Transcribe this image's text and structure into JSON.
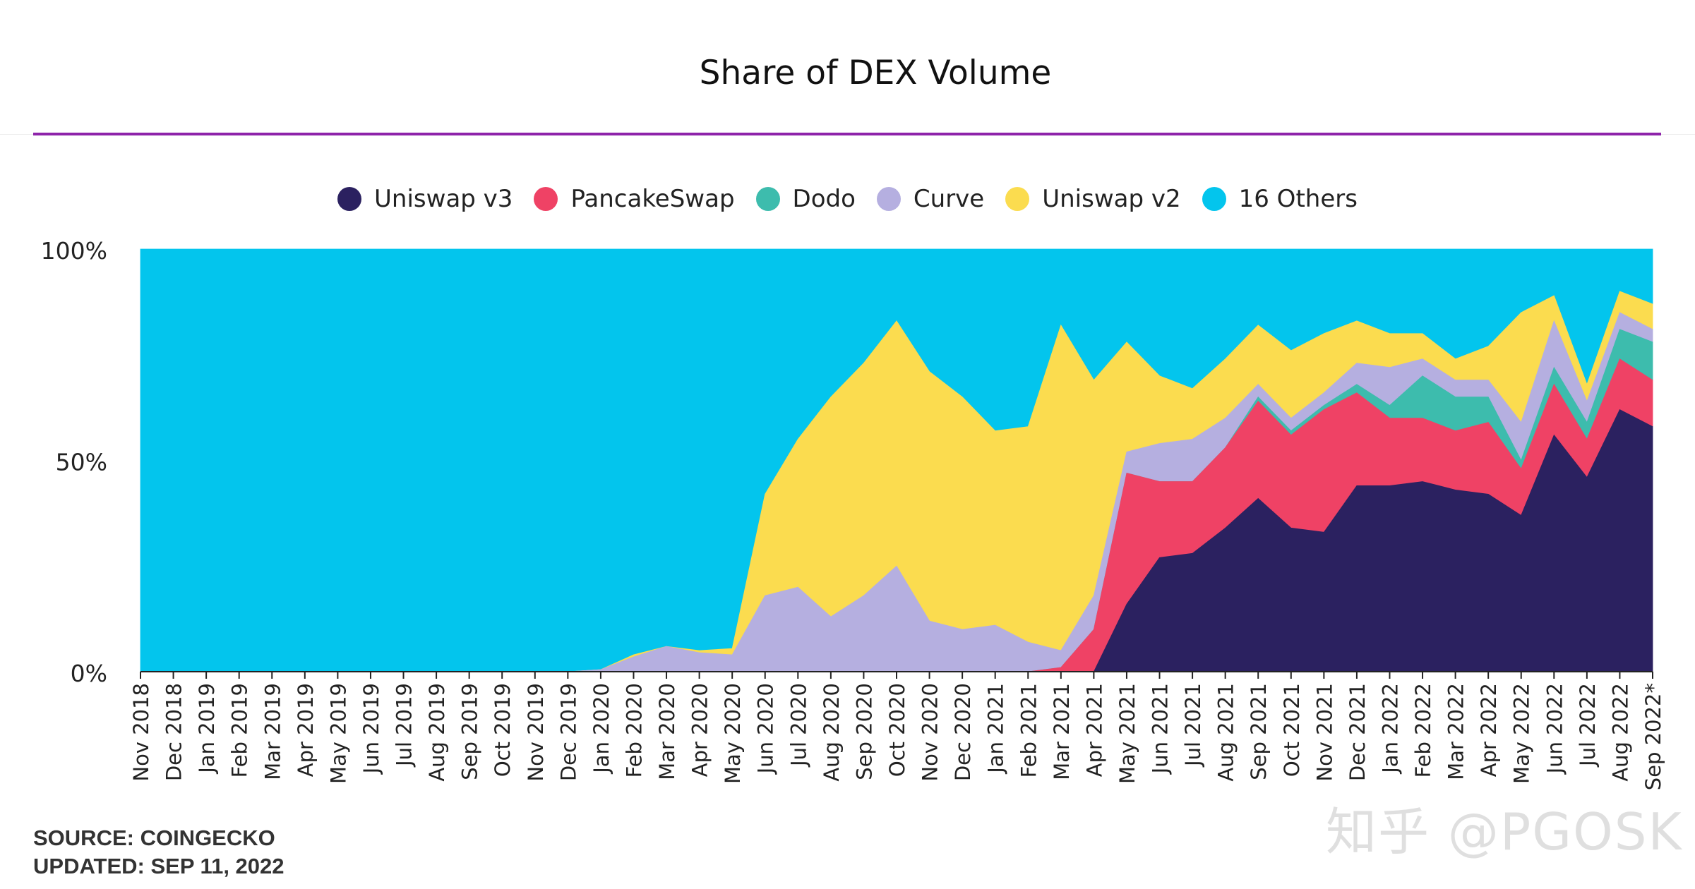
{
  "chart_data": {
    "type": "area",
    "stacked": true,
    "normalized": true,
    "title": "Share of DEX Volume",
    "y_ticks": [
      "0%",
      "50%",
      "100%"
    ],
    "ylim": [
      0,
      100
    ],
    "grid": false,
    "legend_position": "top-center",
    "categories": [
      "Nov 2018",
      "Dec 2018",
      "Jan 2019",
      "Feb 2019",
      "Mar 2019",
      "Apr 2019",
      "May 2019",
      "Jun 2019",
      "Jul 2019",
      "Aug 2019",
      "Sep 2019",
      "Oct 2019",
      "Nov 2019",
      "Dec 2019",
      "Jan 2020",
      "Feb 2020",
      "Mar 2020",
      "Apr 2020",
      "May 2020",
      "Jun 2020",
      "Jul 2020",
      "Aug 2020",
      "Sep 2020",
      "Oct 2020",
      "Nov 2020",
      "Dec 2020",
      "Jan 2021",
      "Feb 2021",
      "Mar 2021",
      "Apr 2021",
      "May 2021",
      "Jun 2021",
      "Jul 2021",
      "Aug 2021",
      "Sep 2021",
      "Oct 2021",
      "Nov 2021",
      "Dec 2021",
      "Jan 2022",
      "Feb 2022",
      "Mar 2022",
      "Apr 2022",
      "May 2022",
      "Jun 2022",
      "Jul 2022",
      "Aug 2022",
      "Sep 2022*"
    ],
    "series": [
      {
        "name": "Uniswap v3",
        "color": "#2b2160",
        "values": [
          0,
          0,
          0,
          0,
          0,
          0,
          0,
          0,
          0,
          0,
          0,
          0,
          0,
          0,
          0,
          0,
          0,
          0,
          0,
          0,
          0,
          0,
          0,
          0,
          0,
          0,
          0,
          0,
          0,
          0,
          16,
          27,
          28,
          34,
          41,
          34,
          33,
          44,
          44,
          45,
          43,
          42,
          37,
          56,
          46,
          62,
          58
        ]
      },
      {
        "name": "PancakeSwap",
        "color": "#ef4265",
        "values": [
          0,
          0,
          0,
          0,
          0,
          0,
          0,
          0,
          0,
          0,
          0,
          0,
          0,
          0,
          0,
          0,
          0,
          0,
          0,
          0,
          0,
          0,
          0,
          0,
          0,
          0,
          0,
          0,
          1,
          10,
          31,
          18,
          17,
          19,
          23,
          22,
          29,
          22,
          16,
          15,
          14,
          17,
          11,
          12,
          9,
          12,
          11
        ]
      },
      {
        "name": "Dodo",
        "color": "#3dbcad",
        "values": [
          0,
          0,
          0,
          0,
          0,
          0,
          0,
          0,
          0,
          0,
          0,
          0,
          0,
          0,
          0,
          0,
          0,
          0,
          0,
          0,
          0,
          0,
          0,
          0,
          0,
          0,
          0,
          0,
          0,
          0,
          0,
          0,
          0,
          0,
          1,
          1,
          1,
          2,
          3,
          10,
          8,
          6,
          2,
          4,
          4,
          7,
          9
        ]
      },
      {
        "name": "Curve",
        "color": "#b5afe0",
        "values": [
          0,
          0,
          0,
          0,
          0,
          0,
          0,
          0,
          0,
          0,
          0,
          0,
          0,
          0,
          0.5,
          3.5,
          6,
          4.5,
          4,
          18,
          20,
          13,
          18,
          25,
          12,
          10,
          11,
          7,
          4,
          8,
          5,
          9,
          10,
          7,
          3,
          3,
          3,
          5,
          9,
          4,
          4,
          4,
          9,
          11,
          5,
          4,
          3
        ]
      },
      {
        "name": "Uniswap v2",
        "color": "#fbdc4f",
        "values": [
          0,
          0,
          0,
          0,
          0,
          0,
          0,
          0,
          0,
          0,
          0,
          0,
          0,
          0,
          0,
          0.5,
          0,
          0.5,
          1.5,
          24,
          35,
          52,
          55,
          58,
          59,
          55,
          46,
          51,
          77,
          51,
          26,
          16,
          12,
          14,
          14,
          16,
          14,
          10,
          8,
          6,
          5,
          8,
          26,
          6,
          4,
          5,
          6
        ]
      },
      {
        "name": "16 Others",
        "color": "#03c5ed",
        "values": [
          100,
          100,
          100,
          100,
          100,
          100,
          100,
          100,
          100,
          100,
          100,
          100,
          100,
          100,
          99.5,
          96,
          94,
          95,
          94.5,
          58,
          45,
          35,
          27,
          17,
          29,
          35,
          43,
          42,
          18,
          31,
          22,
          30,
          33,
          26,
          18,
          24,
          20,
          17,
          20,
          20,
          26,
          23,
          15,
          11,
          32,
          10,
          13
        ]
      }
    ]
  },
  "footer": {
    "source": "SOURCE: COINGECKO",
    "updated": "UPDATED: SEP 11, 2022"
  },
  "watermark": "知乎 @PGOSK"
}
